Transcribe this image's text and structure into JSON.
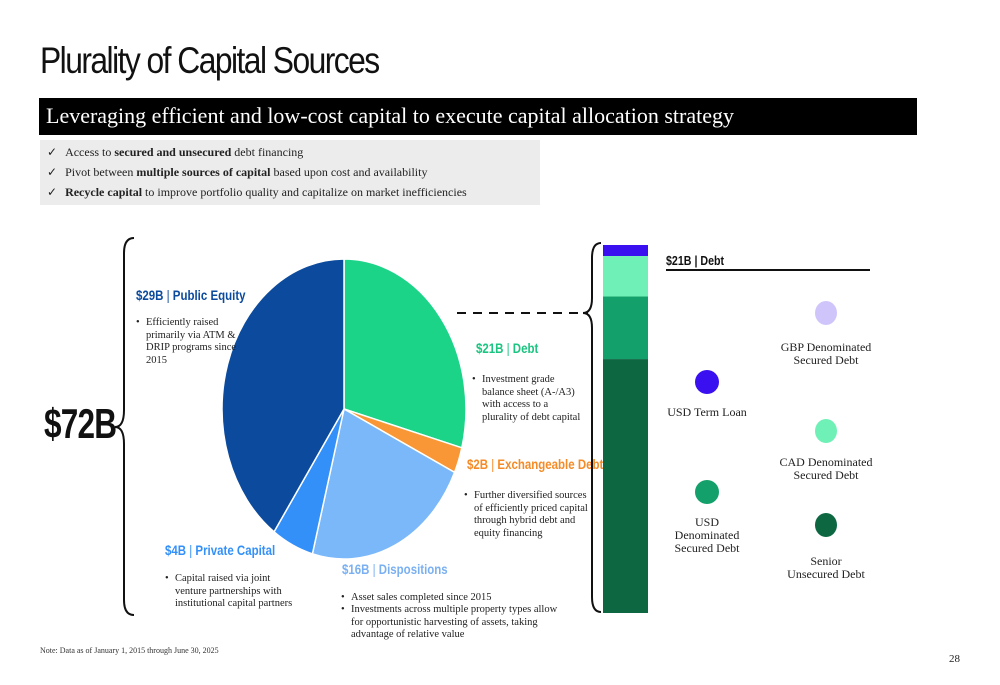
{
  "title": "Plurality of Capital Sources",
  "banner": "Leveraging efficient and low-cost capital to execute capital allocation strategy",
  "checks": [
    {
      "tick": "✓",
      "pre": "Access to ",
      "bold": "secured and unsecured",
      "post": " debt financing"
    },
    {
      "tick": "✓",
      "pre": "Pivot between ",
      "bold": "multiple sources of capital",
      "post": " based upon cost and availability"
    },
    {
      "tick": "✓",
      "pre": "",
      "bold": "Recycle capital",
      "post": " to improve portfolio quality and capitalize on market inefficiencies"
    }
  ],
  "total": "$72B",
  "segments": {
    "equity": {
      "amount": "$29B",
      "sep": "|",
      "label": "Public Equity",
      "color": "#0b4a9c",
      "value": 29,
      "bullets": [
        "Efficiently raised primarily via ATM & DRIP programs since 2015"
      ]
    },
    "debt": {
      "amount": "$21B",
      "sep": "|",
      "label": "Debt",
      "color": "#1bd488",
      "value": 21,
      "bullets": [
        "Investment grade balance sheet (A-/A3) with access to a plurality of debt capital"
      ]
    },
    "exchangeable": {
      "amount": "$2B",
      "sep": "|",
      "label": "Exchangeable Debt",
      "color": "#f99635",
      "value": 2,
      "bullets": [
        "Further diversified sources of efficiently priced capital through hybrid debt and equity financing"
      ]
    },
    "dispositions": {
      "amount": "$16B",
      "sep": "|",
      "label": "Dispositions",
      "color": "#7ab8fa",
      "value": 16,
      "bullets": [
        "Asset sales completed since 2015",
        "Investments across multiple property types allow for opportunistic harvesting of assets, taking advantage of relative value"
      ]
    },
    "private": {
      "amount": "$4B",
      "sep": "|",
      "label": "Private Capital",
      "color": "#3390f9",
      "value": 4,
      "bullets": [
        "Capital raised via joint venture partnerships with institutional capital partners"
      ]
    }
  },
  "debt_panel": {
    "header": "$21B | Debt",
    "stack": [
      {
        "name": "USD Term Loan",
        "color": "#3a10f0",
        "share": 0.03
      },
      {
        "name": "CAD Denominated Secured Debt",
        "color": "#6ff0b6",
        "share": 0.11
      },
      {
        "name": "USD Denominated Secured Debt",
        "color": "#14a06a",
        "share": 0.17
      },
      {
        "name": "Senior Unsecured Debt",
        "color": "#0d6842",
        "share": 0.69
      }
    ],
    "legend": {
      "usd_term": {
        "label1": "USD Term Loan",
        "label2": "",
        "label3": "",
        "color": "#3a10f0"
      },
      "gbp": {
        "label1": "GBP Denominated",
        "label2": "Secured Debt",
        "label3": "",
        "color": "#cfc5fb"
      },
      "cad": {
        "label1": "CAD Denominated",
        "label2": "Secured Debt",
        "label3": "",
        "color": "#6ff0b6"
      },
      "usd_secured": {
        "label1": "USD",
        "label2": "Denominated",
        "label3": "Secured Debt",
        "color": "#14a06a"
      },
      "senior": {
        "label1": "Senior",
        "label2": "Unsecured Debt",
        "label3": "",
        "color": "#0d6842"
      }
    }
  },
  "note": "Note: Data as of January 1, 2015 through June 30, 2025",
  "page_number": "28"
}
